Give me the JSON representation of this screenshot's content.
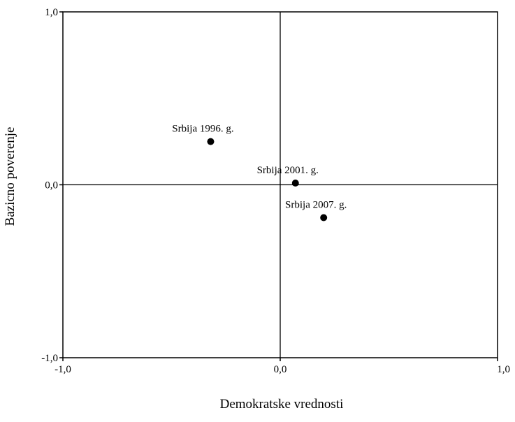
{
  "chart_data": {
    "type": "scatter",
    "title": "",
    "xlabel": "Demokratske vrednosti",
    "ylabel": "Bazicno poverenje",
    "xlim": [
      -1.0,
      1.0
    ],
    "ylim": [
      -1.0,
      1.0
    ],
    "x_ticks": [
      {
        "value": -1.0,
        "label": "-1,0"
      },
      {
        "value": 0.0,
        "label": "0,0"
      },
      {
        "value": 1.0,
        "label": "1,0"
      }
    ],
    "y_ticks": [
      {
        "value": -1.0,
        "label": "-1,0"
      },
      {
        "value": 0.0,
        "label": "0,0"
      },
      {
        "value": 1.0,
        "label": "1,0"
      }
    ],
    "grid": false,
    "reference_lines": {
      "x": 0.0,
      "y": 0.0
    },
    "points": [
      {
        "label": "Srbija 1996. g.",
        "x": -0.32,
        "y": 0.25
      },
      {
        "label": "Srbija 2001. g.",
        "x": 0.07,
        "y": 0.01
      },
      {
        "label": "Srbija 2007. g.",
        "x": 0.2,
        "y": -0.19
      }
    ],
    "point_color": "#000000"
  }
}
